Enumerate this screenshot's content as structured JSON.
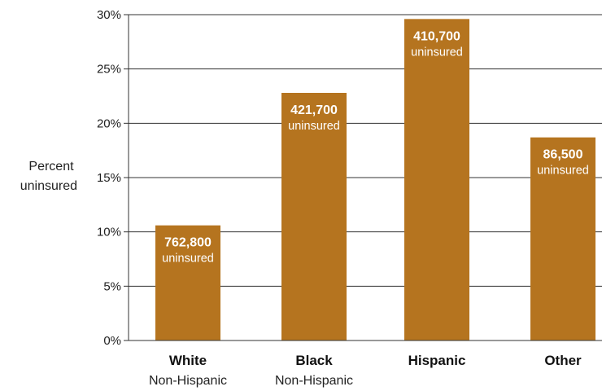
{
  "chart_data": {
    "type": "bar",
    "ylabel": [
      "Percent",
      "uninsured"
    ],
    "xlabel": "",
    "ylim": [
      0,
      30
    ],
    "yticks": [
      0,
      5,
      10,
      15,
      20,
      25,
      30
    ],
    "ytick_labels": [
      "0%",
      "5%",
      "10%",
      "15%",
      "20%",
      "25%",
      "30%"
    ],
    "grid": true,
    "bar_color": "#B5741F",
    "categories": [
      {
        "label": "White",
        "sublabel": "Non-Hispanic"
      },
      {
        "label": "Black",
        "sublabel": "Non-Hispanic"
      },
      {
        "label": "Hispanic",
        "sublabel": ""
      },
      {
        "label": "Other",
        "sublabel": ""
      }
    ],
    "values": [
      10.6,
      22.8,
      29.6,
      18.7
    ],
    "bar_labels": [
      {
        "count": "762,800",
        "text": "uninsured"
      },
      {
        "count": "421,700",
        "text": "uninsured"
      },
      {
        "count": "410,700",
        "text": "uninsured"
      },
      {
        "count": "86,500",
        "text": "uninsured"
      }
    ]
  }
}
